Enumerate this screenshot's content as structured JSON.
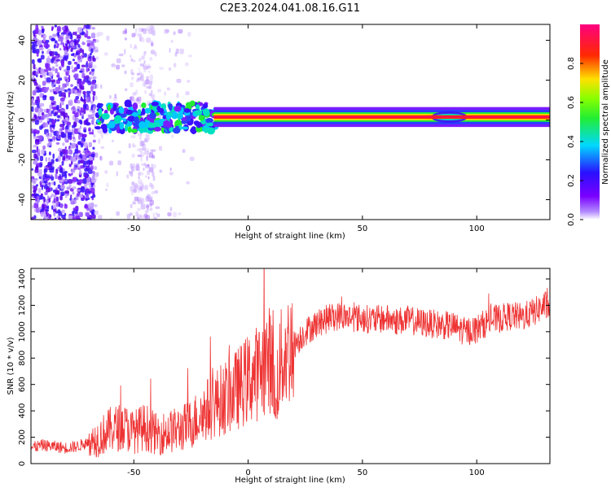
{
  "figure": {
    "title": "C2E3.2024.041.08.16.G11"
  },
  "colors": {
    "snr_line": "#ee3333",
    "axis": "#000000",
    "background": "#ffffff"
  },
  "chart_data": [
    {
      "type": "heatmap",
      "xlabel": "Height of straight line (km)",
      "ylabel": "Frequency (Hz)",
      "xlim": [
        -95,
        132
      ],
      "ylim": [
        -50,
        48
      ],
      "xticks": [
        -50,
        0,
        50,
        100
      ],
      "yticks": [
        -40,
        -20,
        0,
        20,
        40
      ],
      "grid": false,
      "colormap": "rainbow (purple → blue → cyan → green → yellow → red → magenta)",
      "colorbar": {
        "label": "Normalized spectral amplitude",
        "ticks": [
          "0.0",
          "0.2",
          "0.4",
          "0.6",
          "0.8"
        ],
        "range": [
          0,
          1
        ],
        "position": "right"
      },
      "description_of_signal": {
        "noise_region_x": [
          -95,
          -25
        ],
        "main_line_frequency_hz": 1.5,
        "strong_line_start_km": -15,
        "strong_line_end_km": 132
      }
    },
    {
      "type": "line",
      "xlabel": "Height of straight line (km)",
      "ylabel": "SNR (10 * v/v)",
      "xlim": [
        -95,
        132
      ],
      "ylim": [
        0,
        1480
      ],
      "xticks": [
        -50,
        0,
        50,
        100
      ],
      "yticks": [
        0,
        200,
        400,
        600,
        800,
        1000,
        1200,
        1400
      ],
      "grid": false,
      "series": [
        {
          "x": [
            -95,
            -90,
            -80,
            -75,
            -70,
            -65,
            -60,
            -55,
            -50,
            -45,
            -40,
            -35,
            -30,
            -25,
            -20,
            -15,
            -10,
            -5,
            0,
            5,
            8,
            11,
            12,
            13,
            15,
            18,
            20,
            25,
            30,
            35,
            40,
            45,
            50,
            55,
            60,
            65,
            70,
            75,
            80,
            85,
            90,
            95,
            100,
            105,
            110,
            115,
            120,
            125,
            130,
            132
          ],
          "values": [
            120,
            140,
            120,
            130,
            160,
            200,
            260,
            280,
            240,
            280,
            220,
            240,
            260,
            300,
            380,
            450,
            500,
            560,
            640,
            700,
            780,
            800,
            300,
            700,
            800,
            880,
            900,
            1000,
            1060,
            1100,
            1120,
            1110,
            1100,
            1090,
            1100,
            1080,
            1090,
            1070,
            1060,
            1050,
            1040,
            1000,
            1020,
            1080,
            1100,
            1120,
            1110,
            1150,
            1200,
            1180
          ]
        }
      ]
    }
  ]
}
